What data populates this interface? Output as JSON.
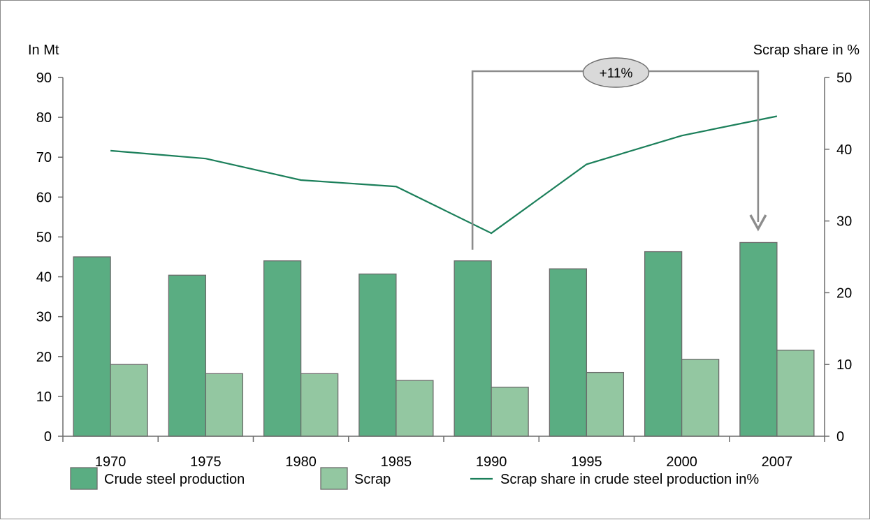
{
  "chart_data": {
    "type": "bar",
    "categories": [
      "1970",
      "1975",
      "1980",
      "1985",
      "1990",
      "1995",
      "2000",
      "2007"
    ],
    "series": [
      {
        "name": "Crude steel production",
        "axis": "left",
        "type": "bar",
        "color": "#5aad82",
        "values": [
          45.0,
          40.4,
          44.0,
          40.7,
          44.0,
          42.0,
          46.3,
          48.6
        ]
      },
      {
        "name": "Scrap",
        "axis": "left",
        "type": "bar",
        "color": "#93c7a1",
        "values": [
          18.0,
          15.7,
          15.7,
          14.0,
          12.3,
          16.0,
          19.3,
          21.6
        ]
      },
      {
        "name": "Scrap share in crude steel production in%",
        "axis": "right",
        "type": "line",
        "color": "#1b7f5a",
        "values": [
          39.8,
          38.7,
          35.7,
          34.8,
          28.3,
          37.9,
          41.9,
          44.6
        ]
      }
    ],
    "ylabel_left": "In Mt",
    "ylabel_right": "Scrap share in %",
    "ylim_left": [
      0,
      90
    ],
    "ylim_right": [
      0,
      50
    ],
    "yticks_left": [
      "0",
      "10",
      "20",
      "30",
      "40",
      "50",
      "60",
      "70",
      "80",
      "90"
    ],
    "yticks_right": [
      "0",
      "10",
      "20",
      "30",
      "40",
      "50"
    ],
    "grid": false,
    "legend_position": "bottom",
    "annotation": {
      "text": "+11%",
      "from_category": "1990",
      "to_category": "2007"
    }
  }
}
